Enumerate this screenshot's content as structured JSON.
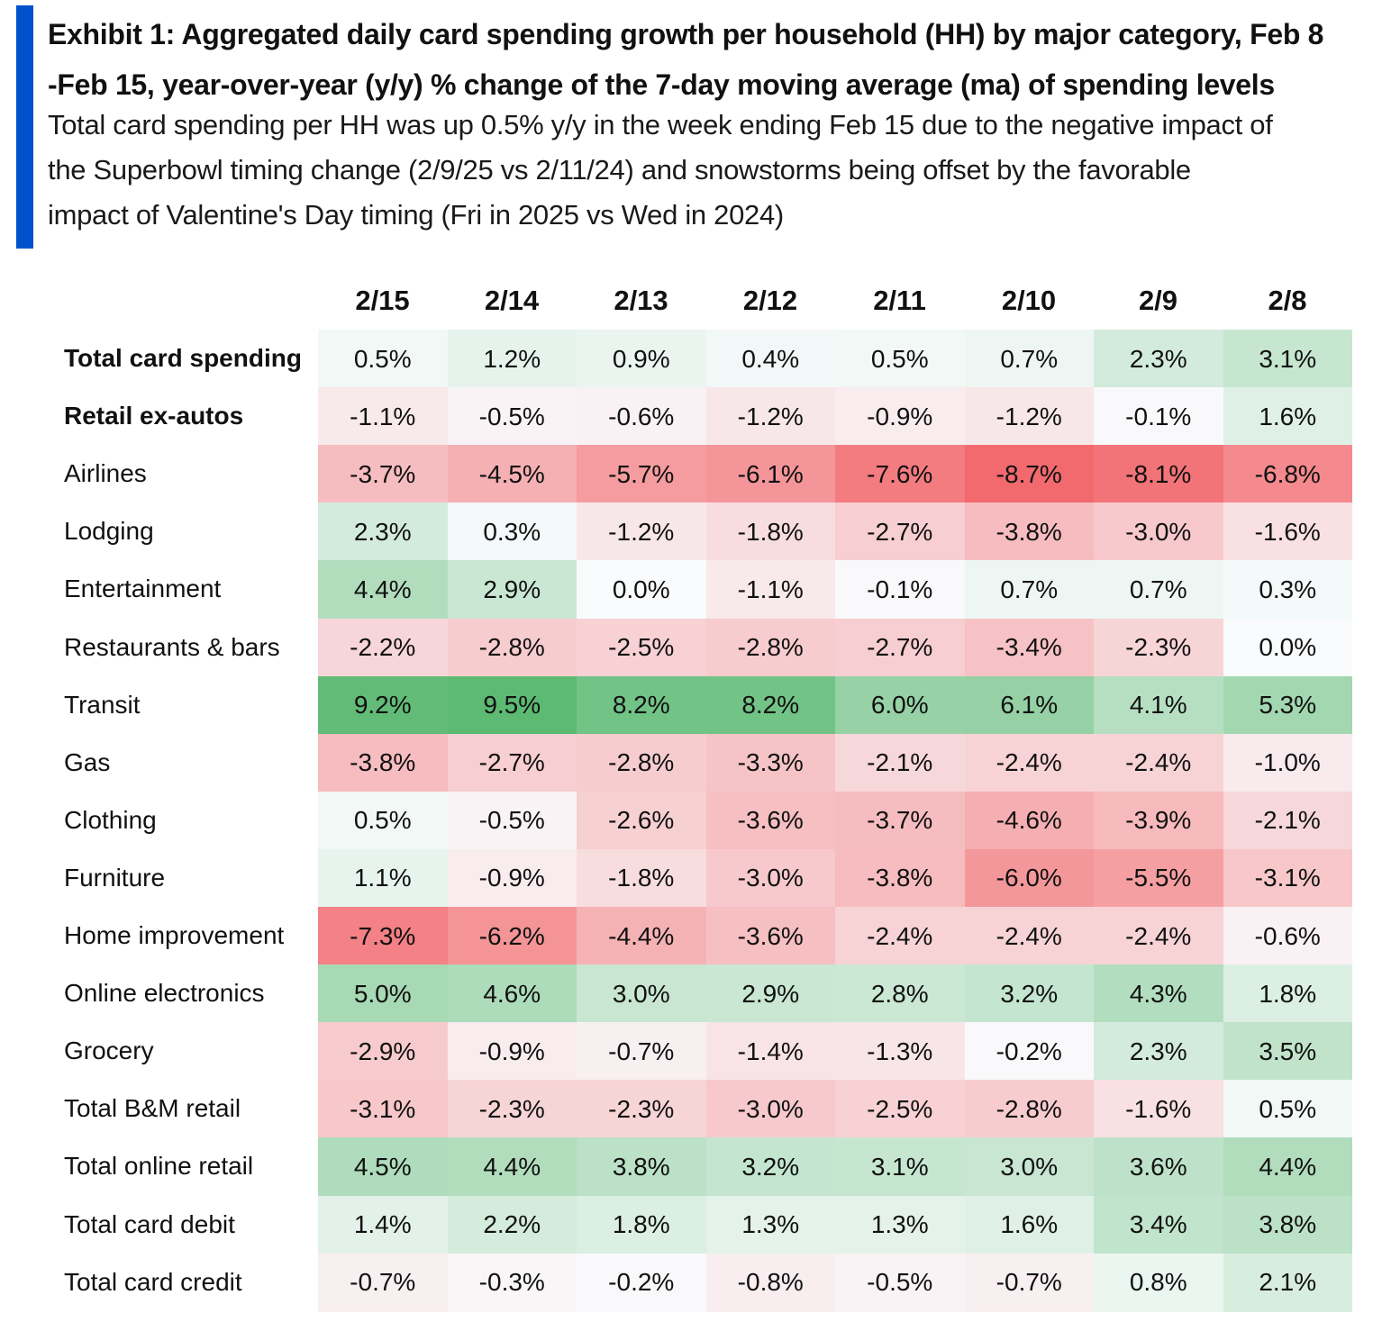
{
  "header": {
    "title": "Exhibit 1: Aggregated daily card spending growth per household (HH) by major category, Feb 8 -Feb 15, year-over-year (y/y) % change of the 7-day moving average (ma) of spending levels",
    "title_line1": "Exhibit 1: Aggregated daily card spending growth per household (HH) by major category, Feb 8",
    "title_line2": "-Feb 15, year-over-year (y/y) % change of the 7-day moving average (ma) of spending levels",
    "subtitle_line1": "Total card spending per HH was up 0.5% y/y in the week ending Feb 15 due to the negative impact of",
    "subtitle_line2": "the Superbowl timing change (2/9/25 vs 2/11/24) and snowstorms being offset by the favorable",
    "subtitle_line3": "impact of Valentine's Day timing (Fri in 2025 vs Wed in 2024)"
  },
  "colors": {
    "accent": "#0052cc",
    "positive_max": "#5dba73",
    "negative_max": "#f26a6e",
    "neutral": "#ffffff"
  },
  "chart_data": {
    "type": "heatmap",
    "columns": [
      "2/15",
      "2/14",
      "2/13",
      "2/12",
      "2/11",
      "2/10",
      "2/9",
      "2/8"
    ],
    "unit": "%",
    "rows": [
      {
        "label": "Total card spending",
        "bold": true,
        "values": [
          0.5,
          1.2,
          0.9,
          0.4,
          0.5,
          0.7,
          2.3,
          3.1
        ]
      },
      {
        "label": "Retail ex-autos",
        "bold": true,
        "values": [
          -1.1,
          -0.5,
          -0.6,
          -1.2,
          -0.9,
          -1.2,
          -0.1,
          1.6
        ]
      },
      {
        "label": "Airlines",
        "bold": false,
        "values": [
          -3.7,
          -4.5,
          -5.7,
          -6.1,
          -7.6,
          -8.7,
          -8.1,
          -6.8
        ]
      },
      {
        "label": "Lodging",
        "bold": false,
        "values": [
          2.3,
          0.3,
          -1.2,
          -1.8,
          -2.7,
          -3.8,
          -3.0,
          -1.6
        ]
      },
      {
        "label": "Entertainment",
        "bold": false,
        "values": [
          4.4,
          2.9,
          0.0,
          -1.1,
          -0.1,
          0.7,
          0.7,
          0.3
        ]
      },
      {
        "label": "Restaurants & bars",
        "bold": false,
        "values": [
          -2.2,
          -2.8,
          -2.5,
          -2.8,
          -2.7,
          -3.4,
          -2.3,
          0.0
        ]
      },
      {
        "label": "Transit",
        "bold": false,
        "values": [
          9.2,
          9.5,
          8.2,
          8.2,
          6.0,
          6.1,
          4.1,
          5.3
        ]
      },
      {
        "label": "Gas",
        "bold": false,
        "values": [
          -3.8,
          -2.7,
          -2.8,
          -3.3,
          -2.1,
          -2.4,
          -2.4,
          -1.0
        ]
      },
      {
        "label": "Clothing",
        "bold": false,
        "values": [
          0.5,
          -0.5,
          -2.6,
          -3.6,
          -3.7,
          -4.6,
          -3.9,
          -2.1
        ]
      },
      {
        "label": "Furniture",
        "bold": false,
        "values": [
          1.1,
          -0.9,
          -1.8,
          -3.0,
          -3.8,
          -6.0,
          -5.5,
          -3.1
        ]
      },
      {
        "label": "Home improvement",
        "bold": false,
        "values": [
          -7.3,
          -6.2,
          -4.4,
          -3.6,
          -2.4,
          -2.4,
          -2.4,
          -0.6
        ]
      },
      {
        "label": "Online electronics",
        "bold": false,
        "values": [
          5.0,
          4.6,
          3.0,
          2.9,
          2.8,
          3.2,
          4.3,
          1.8
        ]
      },
      {
        "label": "Grocery",
        "bold": false,
        "values": [
          -2.9,
          -0.9,
          -0.7,
          -1.4,
          -1.3,
          -0.2,
          2.3,
          3.5
        ]
      },
      {
        "label": "Total B&M retail",
        "bold": false,
        "values": [
          -3.1,
          -2.3,
          -2.3,
          -3.0,
          -2.5,
          -2.8,
          -1.6,
          0.5
        ]
      },
      {
        "label": "Total online retail",
        "bold": false,
        "values": [
          4.5,
          4.4,
          3.8,
          3.2,
          3.1,
          3.0,
          3.6,
          4.4
        ]
      },
      {
        "label": "Total card debit",
        "bold": false,
        "values": [
          1.4,
          2.2,
          1.8,
          1.3,
          1.3,
          1.6,
          3.4,
          3.8
        ]
      },
      {
        "label": "Total card credit",
        "bold": false,
        "values": [
          -0.7,
          -0.3,
          -0.2,
          -0.8,
          -0.5,
          -0.7,
          0.8,
          2.1
        ]
      }
    ]
  }
}
